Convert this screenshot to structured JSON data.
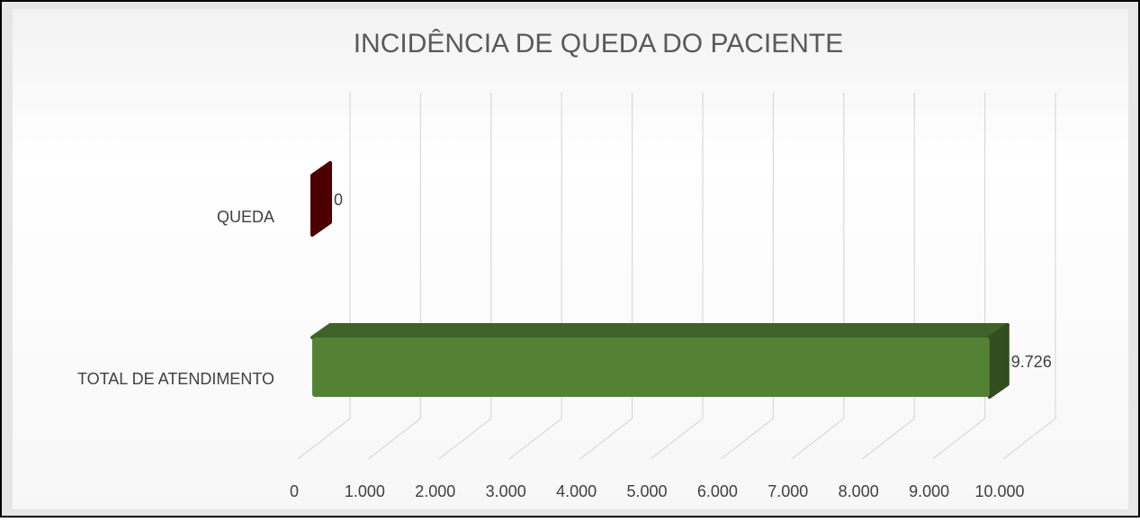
{
  "chart_data": {
    "type": "bar3d_horizontal",
    "title": "INCIDÊNCIA DE QUEDA DO PACIENTE",
    "categories": [
      "QUEDA",
      "TOTAL DE ATENDIMENTO"
    ],
    "values": [
      0,
      9726
    ],
    "value_labels": [
      "0",
      "9.726"
    ],
    "colors": [
      "#7f0000",
      "#548235"
    ],
    "xlim": [
      0,
      10000
    ],
    "xticks": [
      0,
      {
        "value": 1000,
        "label": "1.000"
      },
      {
        "value": 2000,
        "label": "2.000"
      },
      {
        "value": 3000,
        "label": "3.000"
      },
      {
        "value": 4000,
        "label": "4.000"
      },
      {
        "value": 5000,
        "label": "5.000"
      },
      {
        "value": 6000,
        "label": "6.000"
      },
      {
        "value": 7000,
        "label": "7.000"
      },
      {
        "value": 8000,
        "label": "8.000"
      },
      {
        "value": 9000,
        "label": "9.000"
      },
      {
        "value": 10000,
        "label": "10.000"
      }
    ],
    "grid": true
  }
}
